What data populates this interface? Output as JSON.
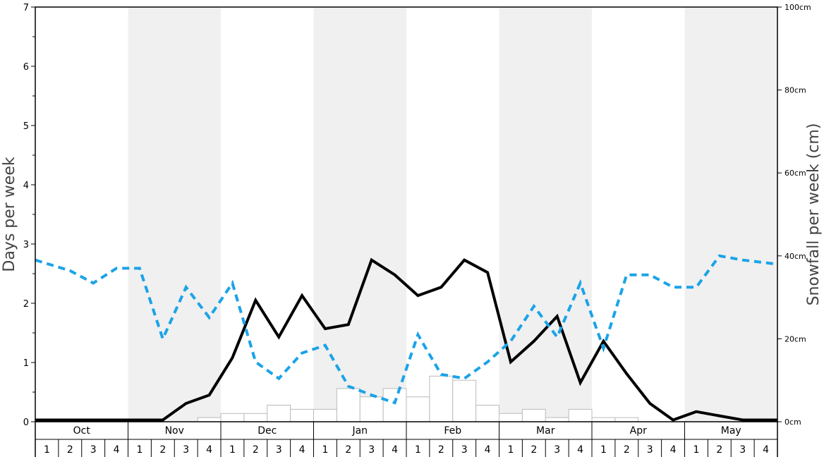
{
  "chart_data": {
    "type": "bar+line",
    "left_axis": {
      "label": "Days per week",
      "ylim": [
        0,
        7
      ],
      "ticks": [
        "0",
        "1",
        "2",
        "3",
        "4",
        "5",
        "6",
        "7"
      ]
    },
    "right_axis": {
      "label": "Snowfall per week (cm)",
      "ylim": [
        0,
        100
      ],
      "ticks": [
        "0cm",
        "20cm",
        "40cm",
        "60cm",
        "80cm",
        "100cm"
      ]
    },
    "months": [
      "Oct",
      "Nov",
      "Dec",
      "Jan",
      "Feb",
      "Mar",
      "Apr",
      "May"
    ],
    "week_labels": [
      "1",
      "2",
      "3",
      "4"
    ],
    "shaded_months": [
      "Nov",
      "Jan",
      "Mar",
      "May"
    ],
    "series": [
      {
        "kind": "bars",
        "axis": "right",
        "color": "#bbbbbb",
        "values": [
          0,
          0,
          0,
          0,
          0,
          0,
          0,
          1,
          2,
          2,
          4,
          3,
          3,
          8,
          6,
          8,
          6,
          11,
          10,
          4,
          2,
          3,
          1,
          3,
          1,
          1,
          0,
          0,
          0,
          0,
          0,
          0
        ]
      },
      {
        "kind": "line",
        "axis": "left",
        "color": "#000000",
        "style": "solid",
        "values": [
          0.03,
          0.03,
          0.03,
          0.03,
          0.03,
          0.03,
          0.31,
          0.45,
          1.08,
          2.05,
          1.43,
          2.13,
          1.57,
          1.64,
          2.73,
          2.48,
          2.13,
          2.27,
          2.73,
          2.52,
          1.01,
          1.36,
          1.78,
          0.66,
          1.36,
          0.81,
          0.31,
          0.03,
          0.17,
          0.1,
          0.03,
          0.03
        ]
      },
      {
        "kind": "line",
        "axis": "left",
        "color": "#1aa3e8",
        "style": "dashed",
        "values": [
          2.73,
          2.55,
          2.34,
          2.59,
          2.59,
          1.4,
          2.27,
          1.76,
          2.34,
          1.01,
          0.73,
          1.16,
          1.29,
          0.6,
          0.45,
          0.32,
          1.47,
          0.8,
          0.73,
          1.01,
          1.36,
          1.95,
          1.43,
          2.34,
          1.24,
          2.48,
          2.48,
          2.27,
          2.27,
          2.8,
          2.73,
          2.66
        ]
      }
    ]
  }
}
